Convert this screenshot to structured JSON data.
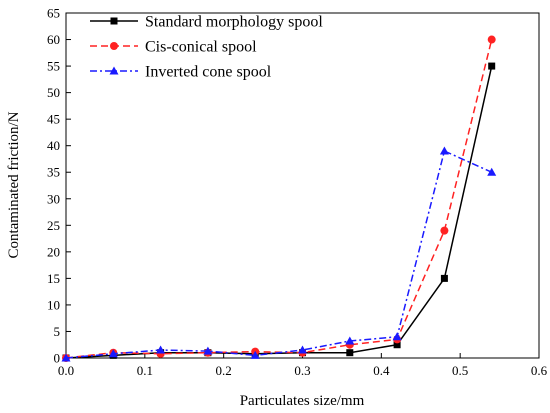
{
  "chart_data": {
    "type": "line",
    "title": "",
    "xlabel": "Particulates size/mm",
    "ylabel": "Contaminated friction/N",
    "xlim": [
      0.0,
      0.6
    ],
    "ylim": [
      0,
      65
    ],
    "x_ticks": [
      "0.0",
      "0.1",
      "0.2",
      "0.3",
      "0.4",
      "0.5",
      "0.6"
    ],
    "y_ticks": [
      "0",
      "5",
      "10",
      "15",
      "20",
      "25",
      "30",
      "35",
      "40",
      "45",
      "50",
      "55",
      "60",
      "65"
    ],
    "legend_position": "top-left",
    "grid": false,
    "series": [
      {
        "name": "Standard morphology spool",
        "color": "#000000",
        "line_style": "solid",
        "marker": "square",
        "x": [
          0.0,
          0.06,
          0.12,
          0.18,
          0.24,
          0.3,
          0.36,
          0.42,
          0.48,
          0.54
        ],
        "y": [
          0.0,
          0.5,
          1.0,
          1.0,
          0.8,
          1.0,
          1.0,
          2.5,
          15.0,
          55.0
        ]
      },
      {
        "name": "Cis-conical spool",
        "color": "#ff2222",
        "line_style": "dashed",
        "marker": "circle",
        "x": [
          0.0,
          0.06,
          0.12,
          0.18,
          0.24,
          0.3,
          0.36,
          0.42,
          0.48,
          0.54
        ],
        "y": [
          0.0,
          1.0,
          0.8,
          1.0,
          1.2,
          1.0,
          2.5,
          3.5,
          24.0,
          60.0
        ]
      },
      {
        "name": "Inverted cone spool",
        "color": "#1a1aff",
        "line_style": "dash-dot",
        "marker": "triangle",
        "x": [
          0.0,
          0.06,
          0.12,
          0.18,
          0.24,
          0.3,
          0.36,
          0.42,
          0.48,
          0.54
        ],
        "y": [
          0.0,
          0.8,
          1.5,
          1.3,
          0.5,
          1.5,
          3.2,
          4.0,
          39.0,
          35.0
        ]
      }
    ]
  }
}
